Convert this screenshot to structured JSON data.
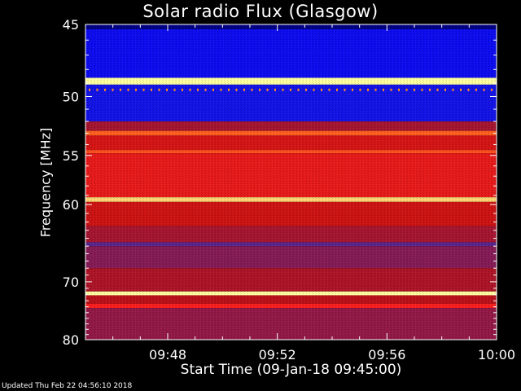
{
  "chart_data": {
    "type": "heatmap",
    "title": "Solar radio Flux (Glasgow)",
    "xlabel": "Start Time (09-Jan-18 09:45:00)",
    "ylabel": "Frequency [MHz]",
    "x_tick_labels": [
      "09:48",
      "09:52",
      "09:56",
      "10:00"
    ],
    "x_tick_minutes": [
      48,
      52,
      56,
      60
    ],
    "x_range_minutes": [
      45,
      60
    ],
    "y_tick_labels": [
      "45",
      "50",
      "55",
      "60",
      "70",
      "80"
    ],
    "y_tick_values": [
      45,
      50,
      55,
      60,
      70,
      80
    ],
    "y_range": [
      45,
      80
    ],
    "y_scale": "reciprocal",
    "colormap": [
      "#000040",
      "#0000ff",
      "#3030c0",
      "#8a1a50",
      "#c01010",
      "#ff2020",
      "#ff8a20",
      "#ffffa0"
    ],
    "frequency_bands": [
      {
        "from": 45.0,
        "to": 45.3,
        "intensity": 0.05
      },
      {
        "from": 45.3,
        "to": 48.6,
        "intensity": 0.18
      },
      {
        "from": 48.6,
        "to": 49.1,
        "intensity": 1.0
      },
      {
        "from": 49.1,
        "to": 52.0,
        "intensity": 0.2
      },
      {
        "from": 52.0,
        "to": 52.8,
        "intensity": 0.5
      },
      {
        "from": 52.8,
        "to": 53.2,
        "intensity": 0.8
      },
      {
        "from": 53.2,
        "to": 54.5,
        "intensity": 0.62
      },
      {
        "from": 54.5,
        "to": 54.8,
        "intensity": 0.78
      },
      {
        "from": 54.8,
        "to": 59.2,
        "intensity": 0.66
      },
      {
        "from": 59.2,
        "to": 59.7,
        "intensity": 0.95
      },
      {
        "from": 59.7,
        "to": 62.5,
        "intensity": 0.6
      },
      {
        "from": 62.5,
        "to": 64.5,
        "intensity": 0.5
      },
      {
        "from": 64.5,
        "to": 65.0,
        "intensity": 0.35
      },
      {
        "from": 65.0,
        "to": 68.0,
        "intensity": 0.42
      },
      {
        "from": 68.0,
        "to": 71.5,
        "intensity": 0.52
      },
      {
        "from": 71.5,
        "to": 72.1,
        "intensity": 1.0
      },
      {
        "from": 72.1,
        "to": 73.5,
        "intensity": 0.55
      },
      {
        "from": 73.5,
        "to": 74.2,
        "intensity": 0.7
      },
      {
        "from": 74.2,
        "to": 80.0,
        "intensity": 0.45
      }
    ]
  },
  "footer": {
    "updated": "Updated Thu Feb 22 04:56:10 2018"
  }
}
